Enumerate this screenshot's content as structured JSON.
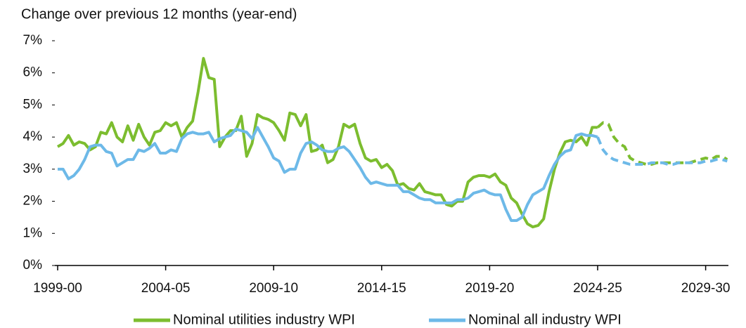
{
  "chart_data": {
    "type": "line",
    "y_label": "Change over previous 12 months (year-end)",
    "categories": [
      "1999-00",
      null,
      null,
      null,
      null,
      null,
      null,
      null,
      null,
      null,
      null,
      null,
      null,
      null,
      null,
      null,
      null,
      null,
      null,
      null,
      "2004-05",
      null,
      null,
      null,
      null,
      null,
      null,
      null,
      null,
      null,
      null,
      null,
      null,
      null,
      null,
      null,
      null,
      null,
      null,
      null,
      "2009-10",
      null,
      null,
      null,
      null,
      null,
      null,
      null,
      null,
      null,
      null,
      null,
      null,
      null,
      null,
      null,
      null,
      null,
      null,
      null,
      "2014-15",
      null,
      null,
      null,
      null,
      null,
      null,
      null,
      null,
      null,
      null,
      null,
      null,
      null,
      null,
      null,
      null,
      null,
      null,
      null,
      "2019-20",
      null,
      null,
      null,
      null,
      null,
      null,
      null,
      null,
      null,
      null,
      null,
      null,
      null,
      null,
      null,
      null,
      null,
      null,
      null,
      "2024-25",
      null,
      null,
      null,
      null,
      null,
      null,
      null,
      null,
      null,
      null,
      null,
      null,
      null,
      null,
      null,
      null,
      null,
      null,
      null,
      "2029-30",
      null,
      null,
      null,
      null
    ],
    "ylim": [
      0,
      7
    ],
    "yticks": [
      {
        "value": 0,
        "label": "0%"
      },
      {
        "value": 1,
        "label": "1%"
      },
      {
        "value": 2,
        "label": "2%"
      },
      {
        "value": 3,
        "label": "3%"
      },
      {
        "value": 4,
        "label": "4%"
      },
      {
        "value": 5,
        "label": "5%"
      },
      {
        "value": 6,
        "label": "6%"
      },
      {
        "value": 7,
        "label": "7%"
      }
    ],
    "grid": false,
    "legend": "bottom",
    "series": [
      {
        "name": "Nominal utilities industry WPI",
        "color": "#7cbd2f",
        "values": [
          3.7,
          3.8,
          4.05,
          3.75,
          3.85,
          3.8,
          3.6,
          3.7,
          4.15,
          4.1,
          4.45,
          4.0,
          3.85,
          4.35,
          3.9,
          4.4,
          4.0,
          3.75,
          4.15,
          4.2,
          4.45,
          4.35,
          4.45,
          4.0,
          4.3,
          4.5,
          5.4,
          6.45,
          5.85,
          5.8,
          3.7,
          4.0,
          4.2,
          4.2,
          4.65,
          3.4,
          3.8,
          4.7,
          4.6,
          4.55,
          4.45,
          4.2,
          3.9,
          4.75,
          4.7,
          4.35,
          4.7,
          3.55,
          3.6,
          3.75,
          3.2,
          3.3,
          3.7,
          4.4,
          4.3,
          4.4,
          3.8,
          3.35,
          3.25,
          3.3,
          3.05,
          3.15,
          2.95,
          2.5,
          2.55,
          2.4,
          2.35,
          2.55,
          2.3,
          2.25,
          2.2,
          2.2,
          1.9,
          1.85,
          2.0,
          2.0,
          2.6,
          2.75,
          2.8,
          2.8,
          2.75,
          2.85,
          2.6,
          2.5,
          2.1,
          1.95,
          1.6,
          1.3,
          1.2,
          1.25,
          1.45,
          2.3,
          3.0,
          3.5,
          3.85,
          3.9,
          3.85,
          4.0,
          3.75,
          4.3,
          4.3,
          null,
          null,
          null,
          null,
          null,
          null,
          null,
          null,
          null,
          null,
          null,
          null,
          null,
          null,
          null,
          null,
          null,
          null,
          null,
          null,
          null,
          null,
          null,
          null
        ],
        "projection": [
          null,
          null,
          null,
          null,
          null,
          null,
          null,
          null,
          null,
          null,
          null,
          null,
          null,
          null,
          null,
          null,
          null,
          null,
          null,
          null,
          null,
          null,
          null,
          null,
          null,
          null,
          null,
          null,
          null,
          null,
          null,
          null,
          null,
          null,
          null,
          null,
          null,
          null,
          null,
          null,
          null,
          null,
          null,
          null,
          null,
          null,
          null,
          null,
          null,
          null,
          null,
          null,
          null,
          null,
          null,
          null,
          null,
          null,
          null,
          null,
          null,
          null,
          null,
          null,
          null,
          null,
          null,
          null,
          null,
          null,
          null,
          null,
          null,
          null,
          null,
          null,
          null,
          null,
          null,
          null,
          null,
          null,
          null,
          null,
          null,
          null,
          null,
          null,
          null,
          null,
          null,
          null,
          null,
          null,
          null,
          null,
          null,
          null,
          null,
          null,
          4.3,
          4.45,
          4.4,
          4.0,
          3.8,
          3.7,
          3.35,
          3.25,
          3.2,
          3.15,
          3.15,
          3.2,
          3.2,
          3.2,
          3.2,
          3.2,
          3.2,
          3.2,
          3.25,
          3.3,
          3.35,
          3.3,
          3.4,
          3.4,
          3.3
        ]
      },
      {
        "name": "Nominal all industry WPI",
        "color": "#6db9e8",
        "values": [
          3.0,
          3.0,
          2.7,
          2.8,
          3.0,
          3.3,
          3.7,
          3.75,
          3.75,
          3.55,
          3.5,
          3.1,
          3.2,
          3.3,
          3.3,
          3.6,
          3.55,
          3.65,
          3.8,
          3.5,
          3.5,
          3.6,
          3.55,
          3.95,
          4.1,
          4.15,
          4.1,
          4.1,
          4.15,
          3.85,
          3.95,
          4.0,
          4.05,
          4.25,
          4.2,
          4.15,
          3.95,
          4.3,
          4.0,
          3.7,
          3.35,
          3.25,
          2.9,
          3.0,
          3.0,
          3.5,
          3.8,
          3.85,
          3.75,
          3.6,
          3.55,
          3.55,
          3.65,
          3.7,
          3.55,
          3.3,
          3.05,
          2.75,
          2.55,
          2.6,
          2.55,
          2.5,
          2.5,
          2.5,
          2.3,
          2.3,
          2.2,
          2.1,
          2.05,
          2.05,
          1.95,
          1.95,
          1.95,
          1.95,
          2.05,
          2.05,
          2.1,
          2.25,
          2.3,
          2.35,
          2.25,
          2.2,
          2.2,
          1.75,
          1.4,
          1.4,
          1.5,
          1.9,
          2.2,
          2.3,
          2.4,
          2.8,
          3.15,
          3.4,
          3.55,
          3.6,
          4.05,
          4.1,
          4.05,
          4.05,
          4.0,
          null,
          null,
          null,
          null,
          null,
          null,
          null,
          null,
          null,
          null,
          null,
          null,
          null,
          null,
          null,
          null,
          null,
          null,
          null,
          null,
          null,
          null,
          null,
          null
        ],
        "projection": [
          null,
          null,
          null,
          null,
          null,
          null,
          null,
          null,
          null,
          null,
          null,
          null,
          null,
          null,
          null,
          null,
          null,
          null,
          null,
          null,
          null,
          null,
          null,
          null,
          null,
          null,
          null,
          null,
          null,
          null,
          null,
          null,
          null,
          null,
          null,
          null,
          null,
          null,
          null,
          null,
          null,
          null,
          null,
          null,
          null,
          null,
          null,
          null,
          null,
          null,
          null,
          null,
          null,
          null,
          null,
          null,
          null,
          null,
          null,
          null,
          null,
          null,
          null,
          null,
          null,
          null,
          null,
          null,
          null,
          null,
          null,
          null,
          null,
          null,
          null,
          null,
          null,
          null,
          null,
          null,
          null,
          null,
          null,
          null,
          null,
          null,
          null,
          null,
          null,
          null,
          null,
          null,
          null,
          null,
          null,
          null,
          null,
          null,
          null,
          null,
          4.0,
          3.6,
          3.4,
          3.3,
          3.25,
          3.2,
          3.15,
          3.15,
          3.15,
          3.15,
          3.2,
          3.2,
          3.2,
          3.15,
          3.15,
          3.2,
          3.2,
          3.2,
          3.2,
          3.2,
          3.25,
          3.25,
          3.3,
          3.3,
          3.25
        ]
      }
    ]
  }
}
